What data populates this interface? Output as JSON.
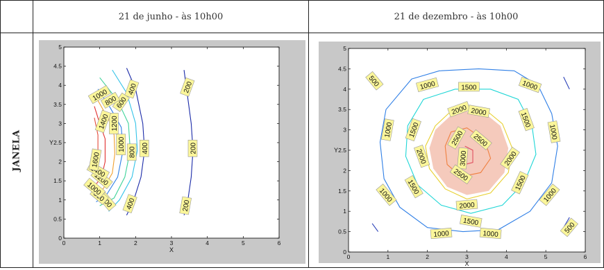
{
  "table": {
    "headers": [
      "21 de junho - às 10h00",
      "21 de dezembro - às 10h00"
    ],
    "row_label": "JANELA"
  },
  "colors": {
    "c200": "#1a2aa8",
    "c400": "#1a2aa8",
    "c500": "#2a40b8",
    "c600": "#33c3e8",
    "c800": "#3fd39a",
    "c1000": "#2f7fe6",
    "c1200": "#f0a030",
    "c1400": "#e23030",
    "c1500": "#1ed6d6",
    "c1600": "#e44a3a",
    "c2000": "#e8d030",
    "c2500": "#f08040",
    "c3000": "#e05060",
    "label_bg": "#fbf69a",
    "highlight": "#f2b8a6",
    "plot_bg": "#c8c8c8"
  },
  "chart_data": [
    {
      "type": "contour",
      "title": "21 de junho - às 10h00",
      "xlabel": "X",
      "ylabel": "Y",
      "xlim": [
        0,
        6
      ],
      "ylim": [
        0,
        5
      ],
      "xticks": [
        0,
        1,
        2,
        3,
        4,
        5,
        6
      ],
      "yticks": [
        0,
        0.5,
        1,
        1.5,
        2,
        2.5,
        3,
        3.5,
        4,
        4.5,
        5
      ],
      "xtick_labels": [
        "0",
        "1",
        "2",
        "3",
        "4",
        "5",
        "6"
      ],
      "ytick_labels": [
        "0",
        "0.5",
        "1",
        "1.5",
        "2",
        "2.5",
        "3",
        "3.5",
        "4",
        "4.5",
        "5"
      ],
      "contours": [
        {
          "level": 200,
          "color": "c200",
          "points": [
            [
              3.35,
              4.4
            ],
            [
              3.45,
              3.7
            ],
            [
              3.55,
              3.0
            ],
            [
              3.6,
              2.3
            ],
            [
              3.55,
              1.6
            ],
            [
              3.45,
              0.95
            ],
            [
              3.35,
              0.6
            ]
          ]
        },
        {
          "level": 400,
          "color": "c400",
          "points": [
            [
              1.75,
              4.45
            ],
            [
              2.0,
              3.9
            ],
            [
              2.2,
              3.0
            ],
            [
              2.25,
              2.3
            ],
            [
              2.15,
              1.6
            ],
            [
              1.95,
              1.0
            ],
            [
              1.75,
              0.6
            ]
          ]
        },
        {
          "level": 600,
          "color": "c600",
          "points": [
            [
              1.35,
              4.4
            ],
            [
              1.75,
              3.8
            ],
            [
              2.0,
              3.0
            ],
            [
              2.05,
              2.3
            ],
            [
              1.9,
              1.6
            ],
            [
              1.55,
              1.0
            ],
            [
              1.25,
              0.7
            ]
          ]
        },
        {
          "level": 800,
          "color": "c800",
          "points": [
            [
              1.0,
              4.2
            ],
            [
              1.5,
              3.6
            ],
            [
              1.8,
              3.0
            ],
            [
              1.85,
              2.3
            ],
            [
              1.7,
              1.6
            ],
            [
              1.4,
              1.05
            ],
            [
              1.0,
              0.85
            ]
          ]
        },
        {
          "level": 1000,
          "color": "c1000",
          "points": [
            [
              0.95,
              3.9
            ],
            [
              1.3,
              3.4
            ],
            [
              1.6,
              2.9
            ],
            [
              1.65,
              2.3
            ],
            [
              1.5,
              1.6
            ],
            [
              1.2,
              1.15
            ],
            [
              0.9,
              0.95
            ]
          ]
        },
        {
          "level": 1200,
          "color": "c1200",
          "points": [
            [
              0.95,
              3.6
            ],
            [
              1.25,
              3.1
            ],
            [
              1.4,
              2.7
            ],
            [
              1.42,
              2.2
            ],
            [
              1.35,
              1.7
            ],
            [
              1.1,
              1.3
            ],
            [
              0.92,
              1.15
            ]
          ]
        },
        {
          "level": 1400,
          "color": "c1400",
          "points": [
            [
              0.85,
              3.45
            ],
            [
              1.0,
              3.0
            ],
            [
              1.15,
              2.6
            ],
            [
              1.15,
              2.0
            ],
            [
              1.05,
              1.6
            ],
            [
              0.85,
              1.35
            ]
          ]
        },
        {
          "level": 1600,
          "color": "c1600",
          "points": [
            [
              0.85,
              3.15
            ],
            [
              0.95,
              2.7
            ],
            [
              0.95,
              2.0
            ],
            [
              0.88,
              1.55
            ]
          ]
        }
      ],
      "labels": [
        {
          "text": "200",
          "x": 3.45,
          "y": 3.95,
          "rot": -70
        },
        {
          "text": "200",
          "x": 3.6,
          "y": 2.35,
          "rot": -90
        },
        {
          "text": "200",
          "x": 3.4,
          "y": 0.85,
          "rot": -80
        },
        {
          "text": "400",
          "x": 1.9,
          "y": 3.9,
          "rot": -70
        },
        {
          "text": "400",
          "x": 2.25,
          "y": 2.35,
          "rot": -90
        },
        {
          "text": "400",
          "x": 1.85,
          "y": 0.9,
          "rot": -70
        },
        {
          "text": "600",
          "x": 1.6,
          "y": 3.55,
          "rot": -55
        },
        {
          "text": "600",
          "x": 1.2,
          "y": 0.95,
          "rot": 50
        },
        {
          "text": "800",
          "x": 1.3,
          "y": 3.6,
          "rot": -30
        },
        {
          "text": "800",
          "x": 1.9,
          "y": 2.25,
          "rot": -90
        },
        {
          "text": "800",
          "x": 0.98,
          "y": 1.1,
          "rot": 40
        },
        {
          "text": "1000",
          "x": 1.0,
          "y": 3.75,
          "rot": -30
        },
        {
          "text": "1000",
          "x": 1.6,
          "y": 2.45,
          "rot": -90
        },
        {
          "text": "1000",
          "x": 0.85,
          "y": 1.3,
          "rot": 40
        },
        {
          "text": "1200",
          "x": 1.4,
          "y": 3.0,
          "rot": -90
        },
        {
          "text": "1200",
          "x": 1.05,
          "y": 1.55,
          "rot": 40
        },
        {
          "text": "1400",
          "x": 1.1,
          "y": 3.05,
          "rot": -70
        },
        {
          "text": "1400",
          "x": 0.95,
          "y": 1.75,
          "rot": 30
        },
        {
          "text": "1600",
          "x": 0.88,
          "y": 2.05,
          "rot": -80
        }
      ]
    },
    {
      "type": "contour",
      "title": "21 de dezembro - às 10h00",
      "xlabel": "X",
      "ylabel": "Y",
      "xlim": [
        0,
        6
      ],
      "ylim": [
        0,
        5
      ],
      "xticks": [
        0,
        1,
        2,
        3,
        4,
        5,
        6
      ],
      "yticks": [
        0,
        0.5,
        1,
        1.5,
        2,
        2.5,
        3,
        3.5,
        4,
        4.5,
        5
      ],
      "xtick_labels": [
        "0",
        "1",
        "2",
        "3",
        "4",
        "5",
        "6"
      ],
      "ytick_labels": [
        "0",
        "0.5",
        "1",
        "1.5",
        "2",
        "2.5",
        "3",
        "3.5",
        "4",
        "4.5",
        "5"
      ],
      "contours": [
        {
          "level": 500,
          "color": "c500",
          "closed": false,
          "points": [
            [
              0.6,
              4.4
            ],
            [
              0.72,
              4.1
            ]
          ]
        },
        {
          "level": 500,
          "color": "c500",
          "closed": false,
          "points": [
            [
              5.45,
              4.3
            ],
            [
              5.6,
              4.0
            ]
          ]
        },
        {
          "level": 500,
          "color": "c500",
          "closed": false,
          "points": [
            [
              0.6,
              0.7
            ],
            [
              0.75,
              0.5
            ]
          ]
        },
        {
          "level": 500,
          "color": "c500",
          "closed": false,
          "points": [
            [
              5.45,
              0.6
            ],
            [
              5.6,
              0.85
            ]
          ]
        },
        {
          "level": 1000,
          "color": "c1000",
          "closed": true,
          "points": [
            [
              1.6,
              4.25
            ],
            [
              2.3,
              4.45
            ],
            [
              3.3,
              4.5
            ],
            [
              4.2,
              4.45
            ],
            [
              4.8,
              4.1
            ],
            [
              5.15,
              3.4
            ],
            [
              5.3,
              2.6
            ],
            [
              5.15,
              1.7
            ],
            [
              4.6,
              1.0
            ],
            [
              3.8,
              0.55
            ],
            [
              2.9,
              0.5
            ],
            [
              2.0,
              0.6
            ],
            [
              1.3,
              1.1
            ],
            [
              0.9,
              1.8
            ],
            [
              0.8,
              2.7
            ],
            [
              0.95,
              3.5
            ]
          ]
        },
        {
          "level": 1500,
          "color": "c1500",
          "closed": true,
          "points": [
            [
              1.9,
              3.75
            ],
            [
              2.7,
              4.0
            ],
            [
              3.6,
              4.0
            ],
            [
              4.3,
              3.75
            ],
            [
              4.65,
              3.1
            ],
            [
              4.75,
              2.4
            ],
            [
              4.45,
              1.7
            ],
            [
              3.9,
              1.15
            ],
            [
              3.1,
              0.95
            ],
            [
              2.35,
              1.15
            ],
            [
              1.75,
              1.65
            ],
            [
              1.45,
              2.35
            ],
            [
              1.5,
              3.1
            ]
          ]
        },
        {
          "level": 2000,
          "color": "c2000",
          "closed": true,
          "points": [
            [
              2.2,
              3.1
            ],
            [
              2.7,
              3.55
            ],
            [
              3.4,
              3.55
            ],
            [
              3.9,
              3.15
            ],
            [
              4.15,
              2.55
            ],
            [
              4.05,
              1.95
            ],
            [
              3.6,
              1.45
            ],
            [
              3.0,
              1.3
            ],
            [
              2.45,
              1.55
            ],
            [
              2.05,
              2.05
            ],
            [
              1.95,
              2.6
            ]
          ]
        },
        {
          "level": 2500,
          "color": "c2500",
          "closed": true,
          "points": [
            [
              2.6,
              2.95
            ],
            [
              3.0,
              3.05
            ],
            [
              3.45,
              2.75
            ],
            [
              3.6,
              2.3
            ],
            [
              3.35,
              1.95
            ],
            [
              2.85,
              1.85
            ],
            [
              2.5,
              2.15
            ],
            [
              2.45,
              2.6
            ]
          ]
        },
        {
          "level": 3000,
          "color": "c3000",
          "closed": false,
          "points": [
            [
              2.95,
              2.6
            ],
            [
              3.15,
              2.5
            ],
            [
              3.15,
              2.2
            ],
            [
              2.95,
              2.15
            ]
          ]
        }
      ],
      "highlight": [
        [
          2.2,
          3.0
        ],
        [
          2.7,
          3.45
        ],
        [
          3.4,
          3.45
        ],
        [
          3.85,
          3.1
        ],
        [
          4.05,
          2.55
        ],
        [
          3.95,
          1.95
        ],
        [
          3.55,
          1.5
        ],
        [
          3.0,
          1.4
        ],
        [
          2.5,
          1.6
        ],
        [
          2.15,
          2.05
        ],
        [
          2.05,
          2.55
        ]
      ],
      "labels": [
        {
          "text": "500",
          "x": 0.65,
          "y": 4.2,
          "rot": 50
        },
        {
          "text": "1000",
          "x": 2.0,
          "y": 4.1,
          "rot": -15
        },
        {
          "text": "1500",
          "x": 3.05,
          "y": 4.05,
          "rot": 0
        },
        {
          "text": "1000",
          "x": 4.6,
          "y": 4.1,
          "rot": 20
        },
        {
          "text": "2000",
          "x": 2.8,
          "y": 3.5,
          "rot": -20
        },
        {
          "text": "2000",
          "x": 3.3,
          "y": 3.45,
          "rot": 10
        },
        {
          "text": "1000",
          "x": 1.0,
          "y": 3.0,
          "rot": -80
        },
        {
          "text": "1500",
          "x": 1.65,
          "y": 3.0,
          "rot": -70
        },
        {
          "text": "1500",
          "x": 4.5,
          "y": 3.25,
          "rot": 70
        },
        {
          "text": "1000",
          "x": 5.2,
          "y": 2.95,
          "rot": 80
        },
        {
          "text": "2500",
          "x": 2.75,
          "y": 2.8,
          "rot": -60
        },
        {
          "text": "2500",
          "x": 3.35,
          "y": 2.75,
          "rot": 40
        },
        {
          "text": "3000",
          "x": 2.9,
          "y": 2.3,
          "rot": -85
        },
        {
          "text": "2000",
          "x": 1.85,
          "y": 2.35,
          "rot": 70
        },
        {
          "text": "2000",
          "x": 4.1,
          "y": 2.3,
          "rot": -55
        },
        {
          "text": "2500",
          "x": 2.85,
          "y": 1.9,
          "rot": 35
        },
        {
          "text": "1500",
          "x": 1.65,
          "y": 1.6,
          "rot": 60
        },
        {
          "text": "1500",
          "x": 4.35,
          "y": 1.7,
          "rot": -65
        },
        {
          "text": "1000",
          "x": 0.95,
          "y": 1.4,
          "rot": 50
        },
        {
          "text": "1000",
          "x": 5.1,
          "y": 1.4,
          "rot": -50
        },
        {
          "text": "2000",
          "x": 3.0,
          "y": 1.15,
          "rot": -5
        },
        {
          "text": "1500",
          "x": 3.1,
          "y": 0.75,
          "rot": 10
        },
        {
          "text": "1000",
          "x": 2.35,
          "y": 0.45,
          "rot": -5
        },
        {
          "text": "1000",
          "x": 3.6,
          "y": 0.45,
          "rot": 5
        },
        {
          "text": "500",
          "x": 5.6,
          "y": 0.6,
          "rot": -50
        }
      ]
    }
  ]
}
